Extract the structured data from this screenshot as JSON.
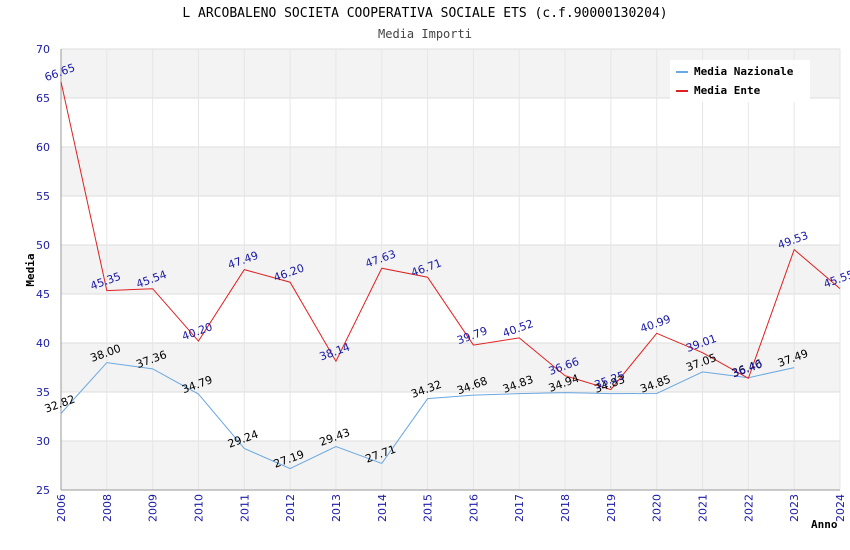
{
  "chart_data": {
    "type": "line",
    "title": "L ARCOBALENO SOCIETA COOPERATIVA SOCIALE ETS (c.f.90000130204)",
    "subtitle": "Media Importi",
    "xlabel": "Anno",
    "ylabel": "Media",
    "ylim": [
      25,
      70
    ],
    "yticks": [
      25,
      30,
      35,
      40,
      45,
      50,
      55,
      60,
      65,
      70
    ],
    "categories": [
      "2006",
      "2008",
      "2009",
      "2010",
      "2011",
      "2012",
      "2013",
      "2014",
      "2015",
      "2016",
      "2017",
      "2018",
      "2019",
      "2020",
      "2021",
      "2022",
      "2023",
      "2024"
    ],
    "grid": true,
    "legend_position": "top-right",
    "series": [
      {
        "name": "Media Nazionale",
        "color": "#6aa8e0",
        "values": [
          32.82,
          38.0,
          37.36,
          34.79,
          29.24,
          27.19,
          29.43,
          27.71,
          34.32,
          34.68,
          34.83,
          34.94,
          34.83,
          34.85,
          37.05,
          36.46,
          37.49,
          null
        ],
        "labels": [
          "32.82",
          "38.00",
          "37.36",
          "34.79",
          "29.24",
          "27.19",
          "29.43",
          "27.71",
          "34.32",
          "34.68",
          "34.83",
          "34.94",
          "34.83",
          "34.85",
          "37.05",
          "36.46",
          "37.49",
          ""
        ]
      },
      {
        "name": "Media Ente",
        "color": "#e02020",
        "values": [
          66.65,
          45.35,
          45.54,
          40.2,
          47.49,
          46.2,
          38.14,
          47.63,
          46.71,
          39.79,
          40.52,
          36.66,
          35.25,
          40.99,
          39.01,
          36.4,
          49.53,
          45.55
        ],
        "labels": [
          "66.65",
          "45.35",
          "45.54",
          "40.20",
          "47.49",
          "46.20",
          "38.14",
          "47.63",
          "46.71",
          "39.79",
          "40.52",
          "36.66",
          "35.25",
          "40.99",
          "39.01",
          "36.40",
          "49.53",
          "45.55"
        ]
      }
    ]
  }
}
